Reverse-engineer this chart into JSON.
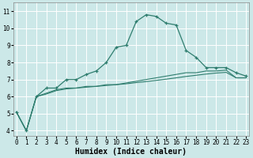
{
  "bg_color": "#cce8e8",
  "grid_color": "#ffffff",
  "line_color": "#2e7d6e",
  "xlabel": "Humidex (Indice chaleur)",
  "xlabel_fontsize": 7,
  "ytick_labels": [
    "4",
    "5",
    "6",
    "7",
    "8",
    "9",
    "10",
    "11"
  ],
  "yticks": [
    4,
    5,
    6,
    7,
    8,
    9,
    10,
    11
  ],
  "xticks": [
    0,
    1,
    2,
    3,
    4,
    5,
    6,
    7,
    8,
    9,
    10,
    11,
    12,
    13,
    14,
    15,
    16,
    17,
    18,
    19,
    20,
    21,
    22,
    23
  ],
  "xlim": [
    -0.3,
    23.3
  ],
  "ylim": [
    3.7,
    11.5
  ],
  "curve1_x": [
    0,
    1,
    2,
    3,
    4,
    5,
    6,
    7,
    8,
    9,
    10,
    11,
    12,
    13,
    14,
    15,
    16,
    17,
    18,
    19,
    20,
    21,
    22,
    23
  ],
  "curve1_y": [
    5.1,
    4.0,
    6.0,
    6.5,
    6.5,
    7.0,
    7.0,
    7.3,
    7.5,
    8.0,
    8.9,
    9.0,
    10.4,
    10.8,
    10.7,
    10.3,
    10.2,
    8.7,
    8.3,
    7.7,
    7.7,
    7.7,
    7.4,
    7.2
  ],
  "curve2_x": [
    0,
    1,
    2,
    3,
    4,
    5,
    6,
    7,
    8,
    9,
    10,
    11,
    12,
    13,
    14,
    15,
    16,
    17,
    18,
    19,
    20,
    21,
    22,
    23
  ],
  "curve2_y": [
    5.1,
    4.0,
    6.0,
    6.2,
    6.4,
    6.5,
    6.5,
    6.6,
    6.6,
    6.7,
    6.7,
    6.8,
    6.9,
    7.0,
    7.1,
    7.2,
    7.3,
    7.4,
    7.4,
    7.5,
    7.5,
    7.55,
    7.1,
    7.1
  ],
  "curve3_x": [
    0,
    1,
    2,
    3,
    4,
    5,
    6,
    7,
    8,
    9,
    10,
    11,
    12,
    13,
    14,
    15,
    16,
    17,
    18,
    19,
    20,
    21,
    22,
    23
  ],
  "curve3_y": [
    5.1,
    4.0,
    6.0,
    6.15,
    6.35,
    6.45,
    6.5,
    6.55,
    6.6,
    6.65,
    6.7,
    6.75,
    6.82,
    6.88,
    6.95,
    7.02,
    7.1,
    7.18,
    7.25,
    7.32,
    7.38,
    7.42,
    7.1,
    7.1
  ]
}
